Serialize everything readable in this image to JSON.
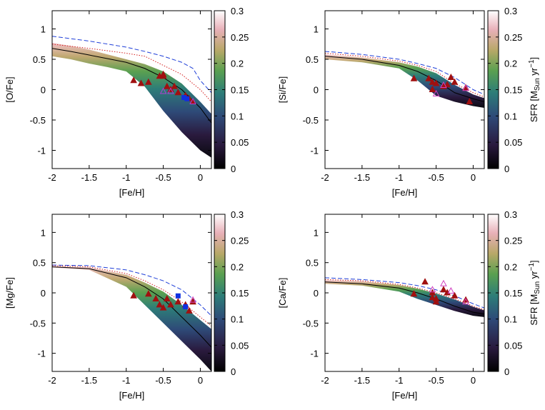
{
  "chart_data": [
    {
      "type": "line",
      "xlabel": "[Fe/H]",
      "ylabel": "[O/Fe]",
      "xlim": [
        -2,
        0.15
      ],
      "ylim": [
        -1.3,
        1.3
      ],
      "xticks": [
        -2,
        -1.5,
        -1,
        -0.5,
        0
      ],
      "yticks": [
        -1,
        -0.5,
        0,
        0.5,
        1
      ],
      "colorbar": {
        "lim": [
          0,
          0.3
        ],
        "ticks": [
          0,
          0.05,
          0.1,
          0.15,
          0.2,
          0.25,
          0.3
        ]
      },
      "series": [
        {
          "style": "band",
          "x": [
            -2,
            -1.75,
            -1.5,
            -1.25,
            -1,
            -0.75,
            -0.5,
            -0.25,
            0,
            0.15
          ],
          "values": [
            0.77,
            0.72,
            0.66,
            0.58,
            0.5,
            0.42,
            0.3,
            0.1,
            -0.2,
            -0.4
          ],
          "lower": [
            0.55,
            0.5,
            0.43,
            0.37,
            0.3,
            0.05,
            -0.35,
            -0.7,
            -1.0,
            -1.12
          ]
        },
        {
          "style": "solid",
          "color": "#000000",
          "x": [
            -2,
            -1.75,
            -1.5,
            -1.25,
            -1,
            -0.75,
            -0.5,
            -0.25,
            0,
            0.15
          ],
          "values": [
            0.68,
            0.63,
            0.57,
            0.51,
            0.45,
            0.35,
            0.2,
            0.0,
            -0.3,
            -0.55
          ]
        },
        {
          "style": "dashed",
          "color": "#1f3fd8",
          "x": [
            -2,
            -1.5,
            -1,
            -0.75,
            -0.5,
            -0.25,
            -0.1,
            0,
            0.15
          ],
          "values": [
            0.88,
            0.8,
            0.7,
            0.63,
            0.55,
            0.45,
            0.35,
            0.15,
            -0.05
          ]
        },
        {
          "style": "dotted",
          "color": "#d42020",
          "x": [
            -2,
            -1.5,
            -1,
            -0.75,
            -0.5,
            -0.25,
            0,
            0.15
          ],
          "values": [
            0.75,
            0.68,
            0.6,
            0.55,
            0.4,
            0.25,
            0.0,
            -0.2
          ]
        },
        {
          "style": "triangle",
          "color": "#a01010",
          "x": [
            -0.9,
            -0.8,
            -0.7,
            -0.55,
            -0.5,
            -0.45,
            -0.4,
            -0.35,
            -0.3,
            -0.2,
            -0.15,
            -0.1,
            -0.5
          ],
          "values": [
            0.15,
            0.1,
            0.12,
            0.22,
            0.25,
            0.05,
            0,
            0.05,
            -0.05,
            -0.1,
            -0.15,
            -0.2,
            0.22
          ]
        },
        {
          "style": "open-triangle",
          "color": "#b040d0",
          "x": [
            -0.5,
            -0.4,
            -0.1
          ],
          "values": [
            -0.03,
            -0.03,
            -0.2
          ]
        },
        {
          "style": "square",
          "color": "#1030e0",
          "x": [
            -0.22,
            -0.18
          ],
          "values": [
            -0.13,
            -0.15
          ]
        }
      ]
    },
    {
      "type": "line",
      "xlabel": "[Fe/H]",
      "ylabel": "[Si/Fe]",
      "xlim": [
        -2,
        0.15
      ],
      "ylim": [
        -1.3,
        1.3
      ],
      "xticks": [
        -2,
        -1.5,
        -1,
        -0.5,
        0
      ],
      "yticks": [
        -1,
        -0.5,
        0,
        0.5,
        1
      ],
      "colorbar": {
        "lim": [
          0,
          0.3
        ],
        "ticks": [
          0,
          0.05,
          0.1,
          0.15,
          0.2,
          0.25,
          0.3
        ],
        "label": [
          "SFR [M",
          "Sun",
          " yr",
          "−1",
          "]"
        ]
      },
      "series": [
        {
          "style": "band",
          "x": [
            -2,
            -1.5,
            -1,
            -0.75,
            -0.5,
            -0.25,
            0,
            0.15
          ],
          "values": [
            0.58,
            0.53,
            0.45,
            0.38,
            0.27,
            0.08,
            -0.08,
            -0.14
          ],
          "lower": [
            0.5,
            0.45,
            0.35,
            0.15,
            -0.1,
            -0.2,
            -0.27,
            -0.3
          ]
        },
        {
          "style": "solid",
          "color": "#000000",
          "x": [
            -2,
            -1.5,
            -1,
            -0.75,
            -0.5,
            -0.25,
            0,
            0.15
          ],
          "values": [
            0.55,
            0.5,
            0.4,
            0.3,
            0.15,
            -0.05,
            -0.15,
            -0.2
          ]
        },
        {
          "style": "dashed",
          "color": "#1f3fd8",
          "x": [
            -2,
            -1.5,
            -1,
            -0.75,
            -0.5,
            -0.25,
            0,
            0.15
          ],
          "values": [
            0.63,
            0.58,
            0.5,
            0.43,
            0.35,
            0.2,
            0.0,
            -0.08
          ]
        },
        {
          "style": "dotted",
          "color": "#d42020",
          "x": [
            -2,
            -1.5,
            -1,
            -0.75,
            -0.5,
            -0.25,
            0,
            0.15
          ],
          "values": [
            0.6,
            0.55,
            0.47,
            0.4,
            0.3,
            0.1,
            -0.05,
            -0.12
          ]
        },
        {
          "style": "triangle",
          "color": "#a01010",
          "x": [
            -0.8,
            -0.6,
            -0.55,
            -0.5,
            -0.55,
            -0.4,
            -0.3,
            -0.25,
            -0.35,
            -0.05,
            -0.1
          ],
          "values": [
            0.18,
            0.18,
            0.12,
            0.1,
            0.0,
            0.05,
            0.2,
            0.12,
            0.08,
            -0.2,
            0.03
          ]
        },
        {
          "style": "open-triangle",
          "color": "#d040c0",
          "x": [
            -0.5,
            -0.4,
            -0.1
          ],
          "values": [
            -0.07,
            0.07,
            0.02
          ]
        }
      ]
    },
    {
      "type": "line",
      "xlabel": "[Fe/H]",
      "ylabel": "[Mg/Fe]",
      "xlim": [
        -2,
        0.15
      ],
      "ylim": [
        -1.3,
        1.3
      ],
      "xticks": [
        -2,
        -1.5,
        -1,
        -0.5,
        0
      ],
      "yticks": [
        -1,
        -0.5,
        0,
        0.5,
        1
      ],
      "colorbar": {
        "lim": [
          0,
          0.3
        ],
        "ticks": [
          0,
          0.05,
          0.1,
          0.15,
          0.2,
          0.25,
          0.3
        ]
      },
      "series": [
        {
          "style": "band",
          "x": [
            -2,
            -1.5,
            -1,
            -0.75,
            -0.5,
            -0.25,
            0,
            0.15
          ],
          "values": [
            0.44,
            0.42,
            0.3,
            0.17,
            0.02,
            -0.2,
            -0.45,
            -0.6
          ],
          "lower": [
            0.42,
            0.38,
            0.1,
            -0.2,
            -0.5,
            -0.8,
            -1.1,
            -1.3
          ]
        },
        {
          "style": "solid",
          "color": "#000000",
          "x": [
            -2,
            -1.5,
            -1,
            -0.75,
            -0.5,
            -0.25,
            0,
            0.15
          ],
          "values": [
            0.43,
            0.4,
            0.25,
            0.1,
            -0.1,
            -0.4,
            -0.7,
            -0.9
          ]
        },
        {
          "style": "dashed",
          "color": "#1f3fd8",
          "x": [
            -2,
            -1.5,
            -1,
            -0.75,
            -0.5,
            -0.25,
            0,
            0.15
          ],
          "values": [
            0.46,
            0.45,
            0.38,
            0.3,
            0.2,
            0.05,
            -0.2,
            -0.38
          ]
        },
        {
          "style": "dotted",
          "color": "#d42020",
          "x": [
            -2,
            -1.5,
            -1,
            -0.75,
            -0.5,
            -0.25,
            0,
            0.15
          ],
          "values": [
            0.45,
            0.43,
            0.32,
            0.2,
            0.05,
            -0.15,
            -0.4,
            -0.55
          ]
        },
        {
          "style": "triangle",
          "color": "#a01010",
          "x": [
            -0.9,
            -0.7,
            -0.6,
            -0.55,
            -0.5,
            -0.45,
            -0.4,
            -0.3,
            -0.2,
            -0.1,
            -0.15
          ],
          "values": [
            -0.05,
            -0.02,
            -0.1,
            -0.2,
            -0.25,
            -0.1,
            -0.2,
            -0.15,
            -0.2,
            -0.15,
            -0.3
          ]
        },
        {
          "style": "open-triangle",
          "color": "#d040c0",
          "x": [
            -0.1
          ],
          "values": [
            -0.12
          ]
        },
        {
          "style": "square",
          "color": "#1030e0",
          "x": [
            -0.3,
            -0.2
          ],
          "values": [
            -0.05,
            -0.23
          ]
        }
      ]
    },
    {
      "type": "line",
      "xlabel": "[Fe/H]",
      "ylabel": "[Ca/Fe]",
      "xlim": [
        -2,
        0.15
      ],
      "ylim": [
        -1.3,
        1.3
      ],
      "xticks": [
        -2,
        -1.5,
        -1,
        -0.5,
        0
      ],
      "yticks": [
        -1,
        -0.5,
        0,
        0.5,
        1
      ],
      "colorbar": {
        "lim": [
          0,
          0.3
        ],
        "ticks": [
          0,
          0.05,
          0.1,
          0.15,
          0.2,
          0.25,
          0.3
        ],
        "label": [
          "SFR [M",
          "Sun",
          " yr",
          "−1",
          "]"
        ]
      },
      "series": [
        {
          "style": "band",
          "x": [
            -2,
            -1.5,
            -1,
            -0.75,
            -0.5,
            -0.25,
            0,
            0.15
          ],
          "values": [
            0.21,
            0.19,
            0.13,
            0.07,
            -0.01,
            -0.11,
            -0.23,
            -0.29
          ],
          "lower": [
            0.15,
            0.12,
            0.02,
            -0.1,
            -0.2,
            -0.3,
            -0.38,
            -0.4
          ]
        },
        {
          "style": "solid",
          "color": "#000000",
          "x": [
            -2,
            -1.5,
            -1,
            -0.75,
            -0.5,
            -0.25,
            0,
            0.15
          ],
          "values": [
            0.18,
            0.15,
            0.08,
            0.0,
            -0.1,
            -0.22,
            -0.32,
            -0.35
          ]
        },
        {
          "style": "dashed",
          "color": "#1f3fd8",
          "x": [
            -2,
            -1.5,
            -1,
            -0.75,
            -0.5,
            -0.25,
            0,
            0.15
          ],
          "values": [
            0.25,
            0.22,
            0.17,
            0.12,
            0.05,
            -0.05,
            -0.18,
            -0.25
          ]
        },
        {
          "style": "dotted",
          "color": "#d42020",
          "x": [
            -2,
            -1.5,
            -1,
            -0.75,
            -0.5,
            -0.25,
            0,
            0.15
          ],
          "values": [
            0.22,
            0.2,
            0.14,
            0.08,
            0.0,
            -0.1,
            -0.22,
            -0.28
          ]
        },
        {
          "style": "triangle",
          "color": "#a01010",
          "x": [
            -0.8,
            -0.65,
            -0.55,
            -0.5,
            -0.5,
            -0.4,
            -0.35,
            -0.25,
            -0.1,
            -0.55
          ],
          "values": [
            -0.02,
            0.18,
            -0.08,
            -0.1,
            -0.15,
            0.05,
            0.0,
            -0.05,
            -0.12,
            0.0
          ]
        },
        {
          "style": "open-triangle",
          "color": "#d040c0",
          "x": [
            -0.55,
            -0.4,
            -0.1,
            -0.3
          ],
          "values": [
            0.05,
            0.15,
            -0.15,
            0.03
          ]
        }
      ]
    }
  ]
}
